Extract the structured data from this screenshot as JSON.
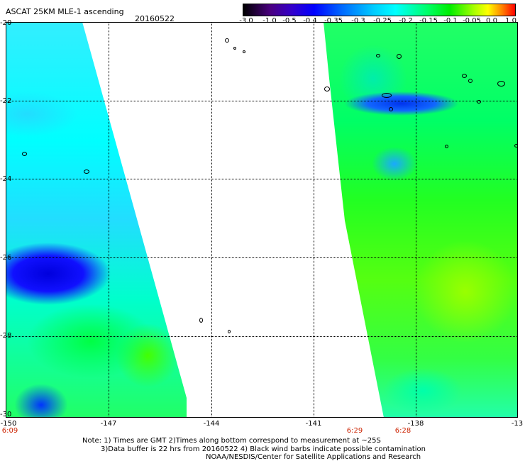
{
  "header": {
    "product": "ASCAT 25KM MLE-1 ascending",
    "date": "20160522"
  },
  "color_scale": {
    "labels": [
      "-3.0",
      "-1.0",
      "-0.5",
      "-0.4",
      "-0.35",
      "-0.3",
      "-0.25",
      "-0.2",
      "-0.15",
      "-0.1",
      "-0.05",
      "0.0",
      "1.0"
    ],
    "colors": [
      "#000000",
      "#4a0080",
      "#0000ff",
      "#00ccff",
      "#00ffff",
      "#00ee00",
      "#ffff00",
      "#ff0000"
    ]
  },
  "map": {
    "y_axis_labels": [
      "-20",
      "-22",
      "-24",
      "-26",
      "-28",
      "-30"
    ],
    "x_axis_labels": [
      "-150",
      "-147",
      "-144",
      "-141",
      "-138",
      "-13"
    ],
    "time_labels": [
      "6:09",
      "6:29",
      "6:28"
    ]
  },
  "footer": {
    "line1": "Note: 1) Times are GMT 2)Times along bottom correspond to measurement at ~25S",
    "line2": "3)Data buffer is 22 hrs from 20160522 4) Black wind barbs indicate possible contamination",
    "line3": "NOAA/NESDIS/Center for Satellite Applications and Research"
  }
}
